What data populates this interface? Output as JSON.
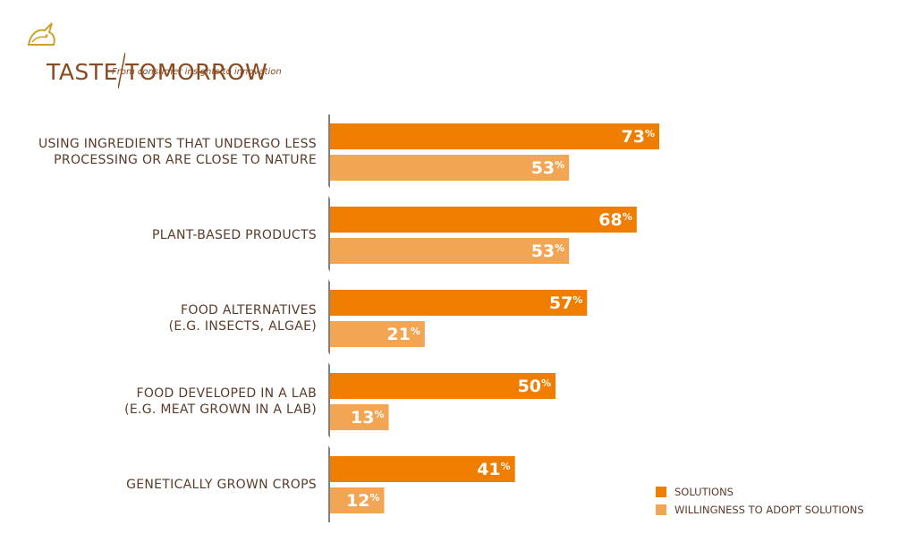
{
  "logo": {
    "title_left": "TASTE",
    "title_right": "TOMORROW",
    "tagline": "From consumer insights to innovation",
    "mark_icon": "unicorn-icon"
  },
  "colors": {
    "solutions": "#ef7d00",
    "willingness": "#f2a553",
    "axis": "#555555",
    "bar_text": "#ffffff"
  },
  "chart_data": {
    "type": "bar",
    "orientation": "horizontal",
    "categories": [
      "USING INGREDIENTS THAT UNDERGO LESS\nPROCESSING OR ARE CLOSE TO NATURE",
      "PLANT-BASED PRODUCTS",
      "FOOD ALTERNATIVES\n(E.G. INSECTS, ALGAE)",
      "FOOD DEVELOPED IN A LAB\n(E.G. MEAT GROWN IN A LAB)",
      "GENETICALLY GROWN CROPS"
    ],
    "series": [
      {
        "name": "SOLUTIONS",
        "values": [
          73,
          68,
          57,
          50,
          41
        ]
      },
      {
        "name": "WILLINGNESS TO ADOPT SOLUTIONS",
        "values": [
          53,
          53,
          21,
          13,
          12
        ]
      }
    ],
    "value_suffix": "%",
    "xlim": [
      0,
      100
    ],
    "grid": false,
    "legend_position": "bottom-right"
  }
}
